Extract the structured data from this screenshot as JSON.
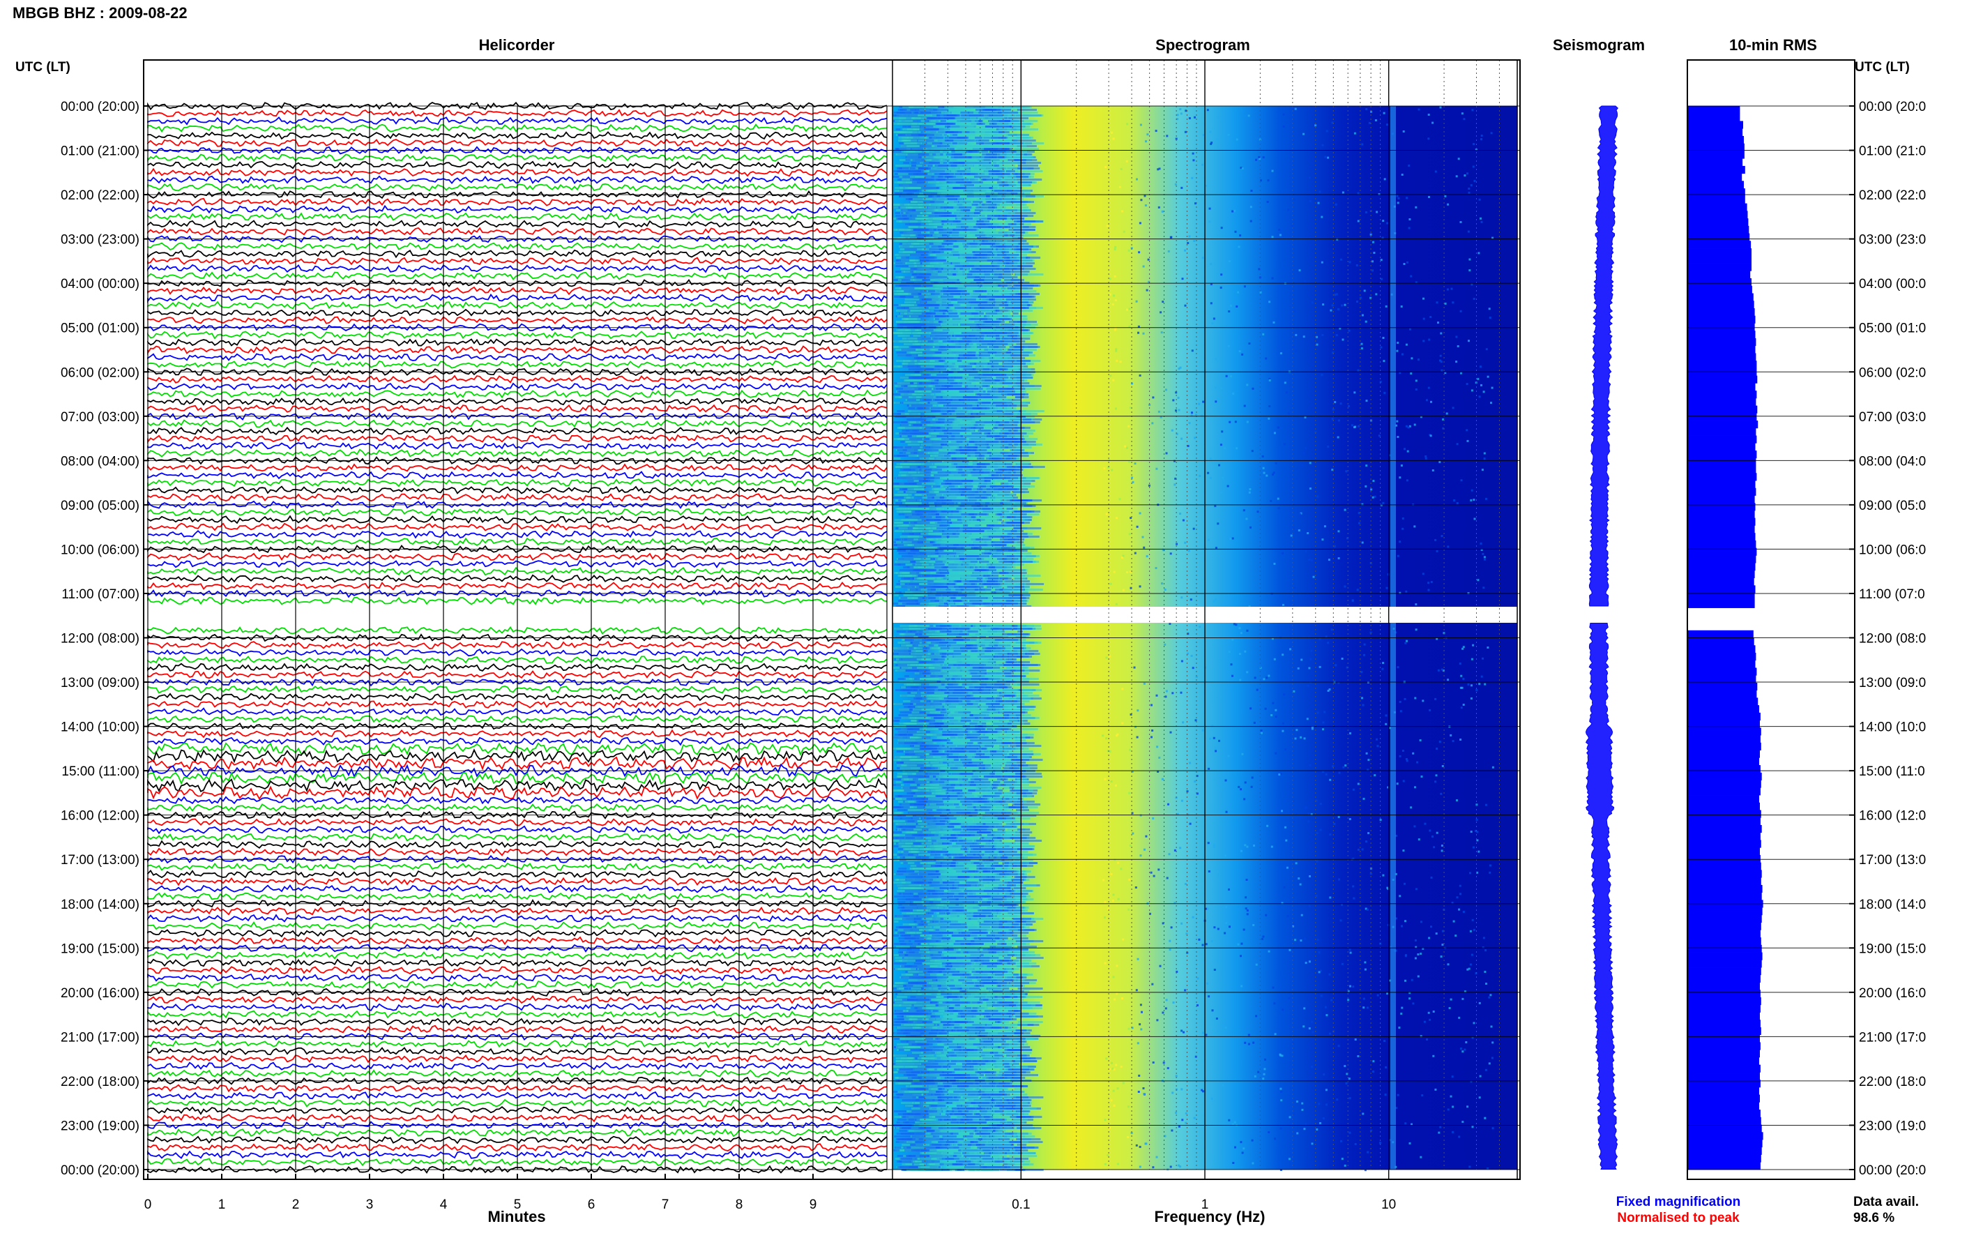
{
  "station_title": "MBGB BHZ : 2009-08-22",
  "panels": {
    "helicorder": "Helicorder",
    "spectrogram": "Spectrogram",
    "seismogram": "Seismogram",
    "rms": "10-min RMS"
  },
  "left_axis_label": "UTC (LT)",
  "right_axis_label": "UTC (LT)",
  "time_labels": [
    "00:00 (20:00)",
    "01:00 (21:00)",
    "02:00 (22:00)",
    "03:00 (23:00)",
    "04:00 (00:00)",
    "05:00 (01:00)",
    "06:00 (02:00)",
    "07:00 (03:00)",
    "08:00 (04:00)",
    "09:00 (05:00)",
    "10:00 (06:00)",
    "11:00 (07:00)",
    "12:00 (08:00)",
    "13:00 (09:00)",
    "14:00 (10:00)",
    "15:00 (11:00)",
    "16:00 (12:00)",
    "17:00 (13:00)",
    "18:00 (14:00)",
    "19:00 (15:00)",
    "20:00 (16:00)",
    "21:00 (17:00)",
    "22:00 (18:00)",
    "23:00 (19:00)",
    "00:00 (20:00)"
  ],
  "right_time_labels": [
    "00:00 (20:0",
    "01:00 (21:0",
    "02:00 (22:0",
    "03:00 (23:0",
    "04:00 (00:0",
    "05:00 (01:0",
    "06:00 (02:0",
    "07:00 (03:0",
    "08:00 (04:0",
    "09:00 (05:0",
    "10:00 (06:0",
    "11:00 (07:0",
    "12:00 (08:0",
    "13:00 (09:0",
    "14:00 (10:0",
    "15:00 (11:0",
    "16:00 (12:0",
    "17:00 (13:0",
    "18:00 (14:0",
    "19:00 (15:0",
    "20:00 (16:0",
    "21:00 (17:0",
    "22:00 (18:0",
    "23:00 (19:0",
    "00:00 (20:0"
  ],
  "legend": {
    "fixed": "Fixed magnification",
    "normalised": "Normalised to peak",
    "fixed_color": "#0000ff",
    "normalised_color": "#ff0000"
  },
  "data_avail": {
    "label": "Data avail.",
    "value": "98.6 %"
  },
  "colors": {
    "trace_cycle": [
      "#000000",
      "#ff0000",
      "#0000ff",
      "#00dd00"
    ],
    "rms_bar": "#0000ff"
  },
  "chart_data": [
    {
      "type": "line",
      "title": "Helicorder",
      "xlabel": "Minutes",
      "xlim": [
        0,
        10
      ],
      "x_ticks": [
        "0",
        "1",
        "2",
        "3",
        "4",
        "5",
        "6",
        "7",
        "8",
        "9"
      ],
      "ylabel": "UTC (LT)",
      "traces_per_hour": 6,
      "data_gap_utc_hour": [
        11.33,
        11.67
      ]
    },
    {
      "type": "heatmap",
      "title": "Spectrogram",
      "xlabel": "Frequency (Hz)",
      "x_scale": "log",
      "xlim": [
        0.02,
        50
      ],
      "x_ticks": [
        "0.1",
        "1",
        "10"
      ],
      "ylim_utc_hour": [
        0,
        24
      ],
      "peak_band_hz": [
        0.15,
        0.5
      ],
      "colormap": [
        "#00008b",
        "#0000ff",
        "#00aaff",
        "#33ddcc",
        "#ffff00"
      ]
    },
    {
      "type": "line",
      "title": "Seismogram",
      "ylim_utc_hour": [
        0,
        24
      ]
    },
    {
      "type": "bar",
      "title": "10-min RMS",
      "orientation": "horizontal",
      "ylim_utc_hour": [
        0,
        24
      ],
      "rms_relative": [
        0.82,
        0.82,
        0.87,
        0.86,
        0.88,
        0.89,
        0.89,
        0.86,
        0.9,
        0.85,
        0.88,
        0.9,
        0.9,
        0.93,
        0.94,
        0.95,
        0.96,
        0.97,
        0.99,
        1.0,
        1.0,
        1.0,
        0.98,
        1.0,
        1.01,
        1.03,
        1.04,
        1.05,
        1.06,
        1.05,
        1.06,
        1.07,
        1.06,
        1.07,
        1.08,
        1.08,
        1.09,
        1.06,
        1.08,
        1.07,
        1.09,
        1.08,
        1.1,
        1.07,
        1.08,
        1.06,
        1.08,
        1.07,
        1.07,
        1.08,
        1.06,
        1.07,
        1.05,
        1.06,
        1.05,
        1.06,
        1.05,
        1.06,
        1.07,
        1.08,
        1.07,
        1.06,
        1.05,
        1.04,
        1.06,
        1.05,
        1.05,
        1.04,
        1.07,
        1.02,
        1.03,
        1.04,
        1.06,
        1.07,
        1.06,
        1.08,
        1.07,
        1.09,
        1.08,
        1.1,
        1.12,
        1.14,
        1.13,
        1.15,
        1.14,
        1.15,
        1.13,
        1.12,
        1.14,
        1.16,
        1.15,
        1.14,
        1.12,
        1.13,
        1.15,
        1.14,
        1.16,
        1.14,
        1.15,
        1.13,
        1.14,
        1.15,
        1.16,
        1.15,
        1.17,
        1.16,
        1.18,
        1.17,
        1.16,
        1.15,
        1.14,
        1.15,
        1.16,
        1.17,
        1.16,
        1.15,
        1.14,
        1.13,
        1.14,
        1.15,
        1.14,
        1.13,
        1.14,
        1.15,
        1.13,
        1.14,
        1.13,
        1.12,
        1.14,
        1.13,
        1.14,
        1.12,
        1.13,
        1.12,
        1.14,
        1.15,
        1.16,
        1.18,
        1.17,
        1.16,
        1.15,
        1.14
      ]
    }
  ]
}
